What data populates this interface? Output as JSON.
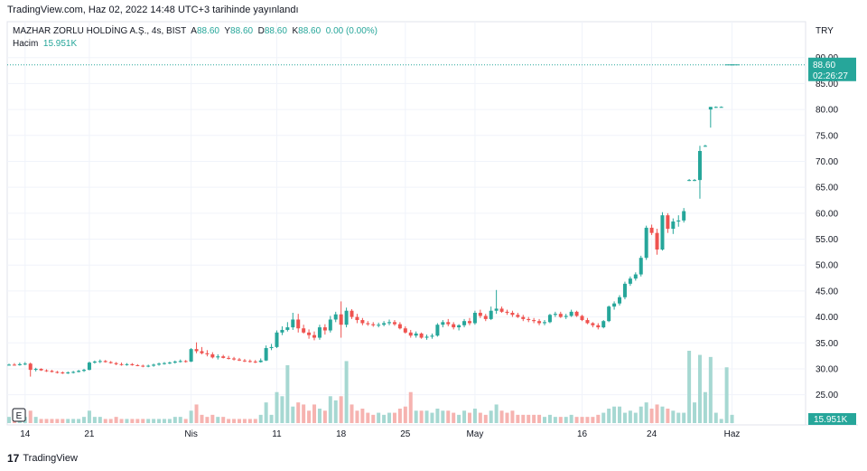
{
  "header": {
    "published": "TradingView.com, Haz 02, 2022 14:48 UTC+3 tarihinde yayınlandı"
  },
  "legend": {
    "symbol": "MAZHAR ZORLU HOLDİNG A.Ş., 4s, BIST",
    "open_label": "A",
    "open": "88.60",
    "high_label": "Y",
    "high": "88.60",
    "low_label": "D",
    "low": "88.60",
    "close_label": "K",
    "close": "88.60",
    "change": "0.00 (0.00%)",
    "volume_label": "Hacim",
    "volume": "15.951K"
  },
  "currency": "TRY",
  "price_tag": {
    "price": "88.60",
    "countdown": "02:26:27"
  },
  "volume_tag": "15.951K",
  "footer": {
    "brand": "TradingView",
    "logo_glyph": "17"
  },
  "e_button": "E",
  "colors": {
    "up": "#26a69a",
    "down": "#ef5350",
    "up_vol": "#a6d8d2",
    "down_vol": "#f6b3b0",
    "grid": "#f0f3fa"
  },
  "chart_data": {
    "type": "candlestick",
    "y_axis_ticks": [
      "90.00",
      "85.00",
      "80.00",
      "75.00",
      "70.00",
      "65.00",
      "60.00",
      "55.00",
      "50.00",
      "45.00",
      "40.00",
      "35.00",
      "30.00",
      "25.00"
    ],
    "ylim": [
      22.5,
      91
    ],
    "last_price": 88.6,
    "x_axis_labels": [
      {
        "label": "14",
        "bar": 3
      },
      {
        "label": "21",
        "bar": 15
      },
      {
        "label": "Nis",
        "bar": 34
      },
      {
        "label": "11",
        "bar": 50
      },
      {
        "label": "18",
        "bar": 62
      },
      {
        "label": "25",
        "bar": 74
      },
      {
        "label": "May",
        "bar": 87
      },
      {
        "label": "16",
        "bar": 107
      },
      {
        "label": "24",
        "bar": 120
      },
      {
        "label": "Haz",
        "bar": 135
      }
    ],
    "volume_max": 35,
    "bars": [
      [
        30.7,
        31.0,
        30.6,
        30.8,
        3
      ],
      [
        30.8,
        31.1,
        30.6,
        30.7,
        2
      ],
      [
        30.7,
        31.2,
        30.6,
        30.9,
        2
      ],
      [
        30.9,
        31.3,
        30.7,
        31.0,
        3
      ],
      [
        31.0,
        31.2,
        28.5,
        29.8,
        6
      ],
      [
        29.8,
        30.2,
        29.5,
        30.0,
        3
      ],
      [
        30.0,
        30.1,
        29.6,
        29.7,
        2
      ],
      [
        29.7,
        29.9,
        29.4,
        29.6,
        2
      ],
      [
        29.6,
        29.8,
        29.3,
        29.4,
        2
      ],
      [
        29.4,
        29.6,
        29.1,
        29.3,
        2
      ],
      [
        29.3,
        29.5,
        29.0,
        29.2,
        2
      ],
      [
        29.2,
        29.5,
        29.0,
        29.3,
        2
      ],
      [
        29.3,
        29.6,
        29.1,
        29.4,
        2
      ],
      [
        29.4,
        29.8,
        29.3,
        29.6,
        2
      ],
      [
        29.6,
        30.0,
        29.4,
        29.8,
        3
      ],
      [
        29.8,
        31.4,
        29.7,
        31.2,
        6
      ],
      [
        31.2,
        31.6,
        31.0,
        31.4,
        3
      ],
      [
        31.4,
        31.8,
        31.1,
        31.5,
        3
      ],
      [
        31.5,
        31.7,
        31.2,
        31.3,
        2
      ],
      [
        31.3,
        31.5,
        31.0,
        31.1,
        2
      ],
      [
        31.1,
        31.3,
        30.7,
        30.9,
        3
      ],
      [
        30.9,
        31.2,
        30.6,
        30.8,
        2
      ],
      [
        30.8,
        31.1,
        30.6,
        30.9,
        2
      ],
      [
        30.9,
        31.1,
        30.6,
        30.7,
        2
      ],
      [
        30.7,
        30.9,
        30.5,
        30.6,
        2
      ],
      [
        30.6,
        30.8,
        30.3,
        30.5,
        2
      ],
      [
        30.5,
        30.8,
        30.3,
        30.6,
        2
      ],
      [
        30.6,
        31.0,
        30.4,
        30.8,
        2
      ],
      [
        30.8,
        31.2,
        30.6,
        31.0,
        2
      ],
      [
        31.0,
        31.3,
        30.8,
        31.1,
        2
      ],
      [
        31.1,
        31.4,
        30.9,
        31.2,
        2
      ],
      [
        31.2,
        31.6,
        31.0,
        31.4,
        3
      ],
      [
        31.4,
        31.8,
        31.2,
        31.5,
        3
      ],
      [
        31.5,
        31.7,
        31.2,
        31.4,
        2
      ],
      [
        31.4,
        34.0,
        31.3,
        33.8,
        6
      ],
      [
        33.8,
        35.1,
        33.0,
        33.4,
        9
      ],
      [
        33.4,
        34.2,
        32.8,
        33.0,
        4
      ],
      [
        33.0,
        33.6,
        32.4,
        32.8,
        3
      ],
      [
        32.8,
        33.2,
        32.0,
        32.2,
        4
      ],
      [
        32.2,
        32.8,
        31.8,
        32.4,
        3
      ],
      [
        32.4,
        32.7,
        32.0,
        32.1,
        3
      ],
      [
        32.1,
        32.5,
        31.8,
        32.0,
        2
      ],
      [
        32.0,
        32.3,
        31.6,
        31.8,
        2
      ],
      [
        31.8,
        32.1,
        31.5,
        31.6,
        2
      ],
      [
        31.6,
        31.9,
        31.3,
        31.5,
        2
      ],
      [
        31.5,
        31.8,
        31.2,
        31.4,
        2
      ],
      [
        31.4,
        31.7,
        31.1,
        31.3,
        2
      ],
      [
        31.3,
        32.0,
        31.2,
        31.6,
        4
      ],
      [
        31.6,
        34.5,
        31.5,
        34.0,
        10
      ],
      [
        34.0,
        34.8,
        33.6,
        34.2,
        4
      ],
      [
        34.2,
        37.4,
        34.0,
        37.0,
        15
      ],
      [
        37.0,
        38.2,
        36.5,
        37.5,
        13
      ],
      [
        37.5,
        39.0,
        37.2,
        38.0,
        28
      ],
      [
        38.0,
        40.8,
        37.5,
        39.5,
        8
      ],
      [
        39.5,
        40.6,
        37.0,
        37.8,
        10
      ],
      [
        37.8,
        38.5,
        36.8,
        37.0,
        9
      ],
      [
        37.0,
        37.6,
        35.8,
        36.5,
        6
      ],
      [
        36.5,
        37.2,
        35.5,
        36.0,
        9
      ],
      [
        36.0,
        38.5,
        35.6,
        38.0,
        7
      ],
      [
        38.0,
        38.6,
        36.6,
        37.4,
        6
      ],
      [
        37.4,
        40.2,
        37.0,
        39.5,
        13
      ],
      [
        39.5,
        41.0,
        39.0,
        40.5,
        11
      ],
      [
        40.5,
        43.0,
        36.0,
        38.5,
        13
      ],
      [
        38.5,
        41.8,
        38.0,
        41.2,
        30
      ],
      [
        41.2,
        41.5,
        39.6,
        40.0,
        9
      ],
      [
        40.0,
        40.6,
        38.8,
        39.4,
        6
      ],
      [
        39.4,
        39.8,
        38.4,
        38.8,
        7
      ],
      [
        38.8,
        39.2,
        38.3,
        38.6,
        5
      ],
      [
        38.6,
        39.0,
        38.1,
        38.4,
        4
      ],
      [
        38.4,
        38.9,
        38.0,
        38.5,
        5
      ],
      [
        38.5,
        39.2,
        38.2,
        38.8,
        4
      ],
      [
        38.8,
        39.5,
        38.4,
        39.0,
        5
      ],
      [
        39.0,
        39.4,
        38.3,
        38.6,
        5
      ],
      [
        38.6,
        39.0,
        37.6,
        37.8,
        7
      ],
      [
        37.8,
        38.2,
        36.8,
        37.0,
        8
      ],
      [
        37.0,
        37.5,
        36.0,
        36.4,
        15
      ],
      [
        36.4,
        37.2,
        36.0,
        36.8,
        6
      ],
      [
        36.8,
        37.0,
        35.8,
        36.0,
        6
      ],
      [
        36.0,
        36.6,
        35.6,
        36.2,
        6
      ],
      [
        36.2,
        36.8,
        35.8,
        36.4,
        5
      ],
      [
        36.4,
        38.8,
        36.2,
        38.5,
        7
      ],
      [
        38.5,
        39.4,
        38.0,
        39.0,
        6
      ],
      [
        39.0,
        39.6,
        38.2,
        38.6,
        6
      ],
      [
        38.6,
        39.0,
        37.6,
        38.0,
        5
      ],
      [
        38.0,
        38.6,
        37.4,
        38.4,
        4
      ],
      [
        38.4,
        39.6,
        38.0,
        39.2,
        6
      ],
      [
        39.2,
        39.8,
        38.4,
        38.8,
        5
      ],
      [
        38.8,
        41.2,
        38.5,
        40.8,
        7
      ],
      [
        40.8,
        41.4,
        39.8,
        40.2,
        5
      ],
      [
        40.2,
        40.6,
        39.2,
        39.6,
        4
      ],
      [
        39.6,
        42.0,
        39.4,
        41.2,
        6
      ],
      [
        41.2,
        45.2,
        40.6,
        41.6,
        9
      ],
      [
        41.6,
        42.0,
        40.8,
        41.0,
        6
      ],
      [
        41.0,
        41.4,
        40.4,
        40.8,
        5
      ],
      [
        40.8,
        41.2,
        40.0,
        40.4,
        6
      ],
      [
        40.4,
        40.8,
        39.8,
        40.0,
        4
      ],
      [
        40.0,
        40.4,
        39.2,
        39.6,
        4
      ],
      [
        39.6,
        40.0,
        39.0,
        39.4,
        4
      ],
      [
        39.4,
        39.8,
        38.8,
        39.2,
        4
      ],
      [
        39.2,
        39.6,
        38.4,
        38.8,
        4
      ],
      [
        38.8,
        39.4,
        38.4,
        39.0,
        3
      ],
      [
        39.0,
        40.6,
        38.8,
        40.4,
        4
      ],
      [
        40.4,
        41.0,
        40.0,
        40.6,
        3
      ],
      [
        40.6,
        41.0,
        39.8,
        40.0,
        3
      ],
      [
        40.0,
        40.6,
        39.6,
        40.2,
        3
      ],
      [
        40.2,
        41.4,
        40.0,
        41.0,
        4
      ],
      [
        41.0,
        41.2,
        40.0,
        40.2,
        3
      ],
      [
        40.2,
        40.4,
        39.2,
        39.4,
        3
      ],
      [
        39.4,
        39.8,
        38.6,
        38.8,
        3
      ],
      [
        38.8,
        39.0,
        38.0,
        38.4,
        3
      ],
      [
        38.4,
        38.8,
        37.6,
        38.0,
        4
      ],
      [
        38.0,
        39.4,
        37.8,
        39.2,
        5
      ],
      [
        39.2,
        42.2,
        39.0,
        42.0,
        7
      ],
      [
        42.0,
        43.0,
        41.4,
        42.6,
        8
      ],
      [
        42.6,
        44.2,
        42.2,
        43.8,
        8
      ],
      [
        43.8,
        46.8,
        43.4,
        46.4,
        5
      ],
      [
        46.4,
        47.8,
        46.0,
        47.4,
        6
      ],
      [
        47.4,
        48.6,
        47.0,
        48.2,
        5
      ],
      [
        48.2,
        51.8,
        47.8,
        51.4,
        8
      ],
      [
        51.4,
        57.6,
        51.0,
        57.2,
        10
      ],
      [
        57.2,
        57.8,
        55.8,
        56.2,
        7
      ],
      [
        56.2,
        57.0,
        52.0,
        53.0,
        9
      ],
      [
        53.0,
        60.2,
        52.8,
        59.6,
        8
      ],
      [
        59.6,
        60.0,
        56.2,
        57.0,
        7
      ],
      [
        57.0,
        59.0,
        56.0,
        58.4,
        6
      ],
      [
        58.4,
        59.6,
        57.4,
        58.6,
        5
      ],
      [
        58.6,
        61.0,
        58.2,
        60.4,
        5
      ],
      [
        66.4,
        66.6,
        66.2,
        66.4,
        35
      ],
      [
        66.4,
        66.6,
        66.2,
        66.4,
        10
      ],
      [
        66.4,
        73.0,
        62.8,
        72.0,
        33
      ],
      [
        73.0,
        73.2,
        72.8,
        73.0,
        15
      ],
      [
        80.0,
        80.5,
        76.5,
        80.5,
        32
      ],
      [
        80.5,
        80.6,
        80.3,
        80.5,
        5
      ],
      [
        80.5,
        80.6,
        80.4,
        80.5,
        2
      ],
      [
        88.6,
        88.6,
        88.6,
        88.6,
        27
      ],
      [
        88.6,
        88.6,
        88.6,
        88.6,
        4
      ]
    ]
  }
}
